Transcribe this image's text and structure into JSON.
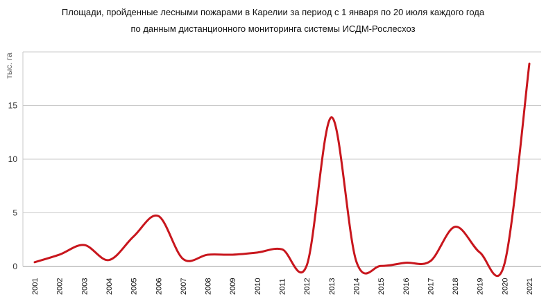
{
  "chart_data": {
    "type": "line",
    "title": "Площади, пройденные лесными пожарами в Карелии за период с 1 января по 20 июля каждого года",
    "subtitle": "по данным дистанционного мониторинга системы ИСДМ-Рослесхоз",
    "ylabel": "тыс. га",
    "xlabel": "",
    "ylim": [
      0,
      20
    ],
    "yticks": [
      0,
      5,
      10,
      15
    ],
    "grid": true,
    "smooth": true,
    "line_color": "#c8161d",
    "categories": [
      "2001",
      "2002",
      "2003",
      "2004",
      "2005",
      "2006",
      "2007",
      "2008",
      "2009",
      "2010",
      "2011",
      "2012",
      "2013",
      "2014",
      "2015",
      "2016",
      "2017",
      "2018",
      "2019",
      "2020",
      "2021"
    ],
    "series": [
      {
        "values": [
          0.4,
          1.1,
          2.0,
          0.6,
          2.8,
          4.7,
          0.7,
          1.1,
          1.1,
          1.3,
          1.6,
          0.1,
          13.9,
          0.5,
          0.05,
          0.35,
          0.5,
          3.7,
          1.3,
          0.3,
          18.9
        ]
      }
    ]
  }
}
